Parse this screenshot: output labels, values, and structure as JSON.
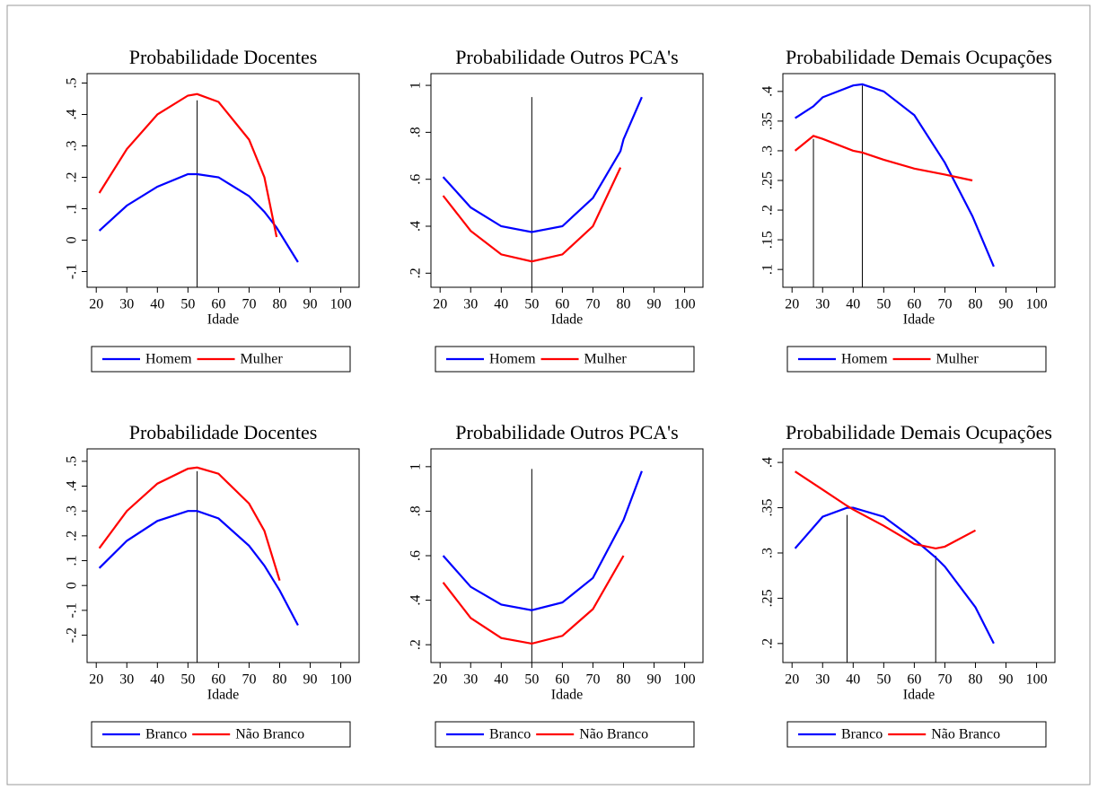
{
  "chart_data": [
    {
      "type": "line",
      "title": "Probabilidade Docentes",
      "xlabel": "Idade",
      "legend": "bottom",
      "x": [
        21,
        30,
        40,
        50,
        53,
        60,
        70,
        75,
        79,
        86
      ],
      "series": [
        {
          "name": "Homem",
          "color": "#0000ff",
          "values": [
            0.03,
            0.11,
            0.17,
            0.21,
            0.21,
            0.2,
            0.14,
            0.09,
            0.04,
            -0.07
          ]
        },
        {
          "name": "Mulher",
          "color": "#ff0000",
          "values": [
            0.15,
            0.29,
            0.4,
            0.46,
            0.465,
            0.44,
            0.32,
            0.2,
            0.01,
            null
          ]
        }
      ],
      "vlines": [
        {
          "x": 53,
          "y": 0.445
        }
      ],
      "xlim": [
        17,
        106
      ],
      "xticks": [
        20,
        30,
        40,
        50,
        60,
        70,
        80,
        90,
        100
      ],
      "ylim": [
        -0.15,
        0.53
      ],
      "yticks": [
        {
          "value": -0.1,
          "label": "-.1"
        },
        0,
        {
          "value": 0.1,
          "label": ".1"
        },
        {
          "value": 0.2,
          "label": ".2"
        },
        {
          "value": 0.3,
          "label": ".3"
        },
        {
          "value": 0.4,
          "label": ".4"
        },
        {
          "value": 0.5,
          "label": ".5"
        }
      ]
    },
    {
      "type": "line",
      "title": "Probabilidade Outros PCA's",
      "xlabel": "Idade",
      "legend": "bottom",
      "x": [
        21,
        30,
        40,
        50,
        60,
        70,
        79,
        80,
        86
      ],
      "series": [
        {
          "name": "Homem",
          "color": "#0000ff",
          "values": [
            0.61,
            0.48,
            0.4,
            0.375,
            0.4,
            0.52,
            0.72,
            0.77,
            0.95
          ]
        },
        {
          "name": "Mulher",
          "color": "#ff0000",
          "values": [
            0.53,
            0.38,
            0.28,
            0.25,
            0.28,
            0.4,
            0.65,
            null,
            null
          ]
        }
      ],
      "vlines": [
        {
          "x": 50,
          "y": 0.95
        }
      ],
      "xlim": [
        17,
        106
      ],
      "xticks": [
        20,
        30,
        40,
        50,
        60,
        70,
        80,
        90,
        100
      ],
      "ylim": [
        0.14,
        1.05
      ],
      "yticks": [
        {
          "value": 0.2,
          "label": ".2"
        },
        {
          "value": 0.4,
          "label": ".4"
        },
        {
          "value": 0.6,
          "label": ".6"
        },
        {
          "value": 0.8,
          "label": ".8"
        },
        1
      ]
    },
    {
      "type": "line",
      "title": "Probabilidade Demais Ocupações",
      "xlabel": "Idade",
      "legend": "bottom",
      "x": [
        21,
        27,
        30,
        40,
        43,
        50,
        60,
        70,
        79,
        86
      ],
      "series": [
        {
          "name": "Homem",
          "color": "#0000ff",
          "values": [
            0.355,
            0.375,
            0.39,
            0.41,
            0.412,
            0.4,
            0.36,
            0.28,
            0.19,
            0.105
          ]
        },
        {
          "name": "Mulher",
          "color": "#ff0000",
          "values": [
            0.3,
            0.325,
            0.32,
            0.3,
            0.297,
            0.285,
            0.27,
            0.26,
            0.25,
            null
          ]
        }
      ],
      "vlines": [
        {
          "x": 27,
          "y": 0.32
        },
        {
          "x": 43,
          "y": 0.41
        }
      ],
      "xlim": [
        17,
        106
      ],
      "xticks": [
        20,
        30,
        40,
        50,
        60,
        70,
        80,
        90,
        100
      ],
      "ylim": [
        0.07,
        0.43
      ],
      "yticks": [
        {
          "value": 0.1,
          "label": ".1"
        },
        {
          "value": 0.15,
          "label": ".15"
        },
        {
          "value": 0.2,
          "label": ".2"
        },
        {
          "value": 0.25,
          "label": ".25"
        },
        {
          "value": 0.3,
          "label": ".3"
        },
        {
          "value": 0.35,
          "label": ".35"
        },
        {
          "value": 0.4,
          "label": ".4"
        }
      ]
    },
    {
      "type": "line",
      "title": "Probabilidade Docentes",
      "xlabel": "Idade",
      "legend": "bottom",
      "x": [
        21,
        30,
        40,
        50,
        53,
        60,
        70,
        75,
        80,
        86
      ],
      "series": [
        {
          "name": "Branco",
          "color": "#0000ff",
          "values": [
            0.07,
            0.18,
            0.26,
            0.3,
            0.3,
            0.27,
            0.16,
            0.08,
            -0.02,
            -0.16
          ]
        },
        {
          "name": "Não Branco",
          "color": "#ff0000",
          "values": [
            0.15,
            0.3,
            0.41,
            0.47,
            0.475,
            0.45,
            0.33,
            0.22,
            0.02,
            null
          ]
        }
      ],
      "vlines": [
        {
          "x": 53,
          "y": 0.46
        }
      ],
      "xlim": [
        17,
        106
      ],
      "xticks": [
        20,
        30,
        40,
        50,
        60,
        70,
        80,
        90,
        100
      ],
      "ylim": [
        -0.31,
        0.55
      ],
      "yticks": [
        {
          "value": -0.2,
          "label": "-.2"
        },
        {
          "value": -0.1,
          "label": "-.1"
        },
        0,
        {
          "value": 0.1,
          "label": ".1"
        },
        {
          "value": 0.2,
          "label": ".2"
        },
        {
          "value": 0.3,
          "label": ".3"
        },
        {
          "value": 0.4,
          "label": ".4"
        },
        {
          "value": 0.5,
          "label": ".5"
        }
      ]
    },
    {
      "type": "line",
      "title": "Probabilidade Outros PCA's",
      "xlabel": "Idade",
      "legend": "bottom",
      "x": [
        21,
        30,
        40,
        50,
        60,
        70,
        80,
        86
      ],
      "series": [
        {
          "name": "Branco",
          "color": "#0000ff",
          "values": [
            0.6,
            0.46,
            0.38,
            0.355,
            0.39,
            0.5,
            0.76,
            0.98
          ]
        },
        {
          "name": "Não Branco",
          "color": "#ff0000",
          "values": [
            0.48,
            0.32,
            0.23,
            0.205,
            0.24,
            0.36,
            0.6,
            null
          ]
        }
      ],
      "vlines": [
        {
          "x": 50,
          "y": 0.99
        }
      ],
      "xlim": [
        17,
        106
      ],
      "xticks": [
        20,
        30,
        40,
        50,
        60,
        70,
        80,
        90,
        100
      ],
      "ylim": [
        0.12,
        1.08
      ],
      "yticks": [
        {
          "value": 0.2,
          "label": ".2"
        },
        {
          "value": 0.4,
          "label": ".4"
        },
        {
          "value": 0.6,
          "label": ".6"
        },
        {
          "value": 0.8,
          "label": ".8"
        },
        1
      ]
    },
    {
      "type": "line",
      "title": "Probabilidade Demais Ocupações",
      "xlabel": "Idade",
      "legend": "bottom",
      "x": [
        21,
        30,
        38,
        40,
        50,
        60,
        67,
        70,
        80,
        86
      ],
      "series": [
        {
          "name": "Branco",
          "color": "#0000ff",
          "values": [
            0.305,
            0.34,
            0.35,
            0.35,
            0.34,
            0.315,
            0.295,
            0.285,
            0.24,
            0.2
          ]
        },
        {
          "name": "Não Branco",
          "color": "#ff0000",
          "values": [
            0.39,
            0.37,
            0.352,
            0.348,
            0.33,
            0.31,
            0.305,
            0.307,
            0.325,
            null
          ]
        }
      ],
      "vlines": [
        {
          "x": 38,
          "y": 0.342
        },
        {
          "x": 67,
          "y": 0.297
        }
      ],
      "xlim": [
        17,
        106
      ],
      "xticks": [
        20,
        30,
        40,
        50,
        60,
        70,
        80,
        90,
        100
      ],
      "ylim": [
        0.179,
        0.415
      ],
      "yticks": [
        {
          "value": 0.2,
          "label": ".2"
        },
        {
          "value": 0.25,
          "label": ".25"
        },
        {
          "value": 0.3,
          "label": ".3"
        },
        {
          "value": 0.35,
          "label": ".35"
        },
        {
          "value": 0.4,
          "label": ".4"
        }
      ]
    }
  ]
}
